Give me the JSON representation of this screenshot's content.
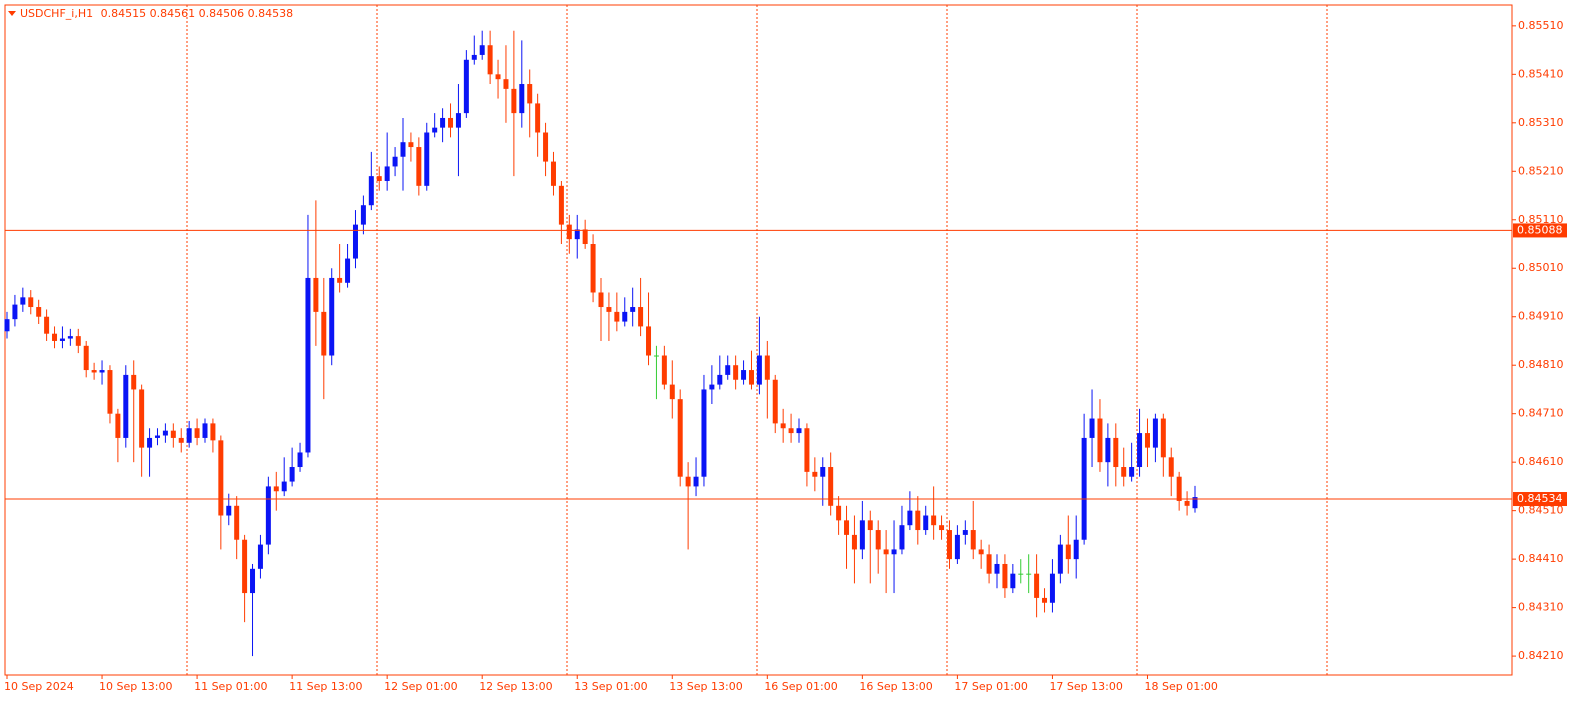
{
  "chart_data": {
    "type": "candlestick",
    "title": "USDCHF_i,H1",
    "categories": [
      "10 Sep 2024",
      null,
      null,
      null,
      null,
      null,
      null,
      null,
      null,
      null,
      null,
      null,
      "10 Sep 13:00",
      null,
      null,
      null,
      null,
      null,
      null,
      null,
      null,
      null,
      null,
      null,
      "11 Sep 01:00",
      null,
      null,
      null,
      null,
      null,
      null,
      null,
      null,
      null,
      null,
      null,
      "11 Sep 13:00",
      null,
      null,
      null,
      null,
      null,
      null,
      null,
      null,
      null,
      null,
      null,
      "12 Sep 01:00",
      null,
      null,
      null,
      null,
      null,
      null,
      null,
      null,
      null,
      null,
      null,
      "12 Sep 13:00",
      null,
      null,
      null,
      null,
      null,
      null,
      null,
      null,
      null,
      null,
      null,
      "13 Sep 01:00",
      null,
      null,
      null,
      null,
      null,
      null,
      null,
      null,
      null,
      null,
      null,
      "13 Sep 13:00",
      null,
      null,
      null,
      null,
      null,
      null,
      null,
      null,
      null,
      null,
      null,
      "16 Sep 01:00",
      null,
      null,
      null,
      null,
      null,
      null,
      null,
      null,
      null,
      null,
      null,
      "16 Sep 13:00",
      null,
      null,
      null,
      null,
      null,
      null,
      null,
      null,
      null,
      null,
      null,
      "17 Sep 01:00",
      null,
      null,
      null,
      null,
      null,
      null,
      null,
      null,
      null,
      null,
      null,
      "17 Sep 13:00",
      null,
      null,
      null,
      null,
      null,
      null,
      null,
      null,
      null,
      null,
      null,
      "18 Sep 01:00",
      null,
      null,
      null,
      null,
      null,
      null
    ],
    "ohlc": [
      [
        0.8488,
        0.8492,
        0.84865,
        0.84905
      ],
      [
        0.84905,
        0.84955,
        0.8489,
        0.84935
      ],
      [
        0.84935,
        0.8497,
        0.8492,
        0.8495
      ],
      [
        0.8495,
        0.84965,
        0.84915,
        0.8493
      ],
      [
        0.8493,
        0.84945,
        0.84895,
        0.8491
      ],
      [
        0.8491,
        0.84925,
        0.8486,
        0.84875
      ],
      [
        0.84875,
        0.8489,
        0.84845,
        0.8486
      ],
      [
        0.8486,
        0.8489,
        0.84845,
        0.84865
      ],
      [
        0.84865,
        0.84885,
        0.8485,
        0.8487
      ],
      [
        0.8487,
        0.84885,
        0.84835,
        0.8485
      ],
      [
        0.8485,
        0.8486,
        0.84785,
        0.848
      ],
      [
        0.848,
        0.84815,
        0.8478,
        0.84795
      ],
      [
        0.84795,
        0.8482,
        0.8477,
        0.848
      ],
      [
        0.848,
        0.8481,
        0.8469,
        0.8471
      ],
      [
        0.8471,
        0.8472,
        0.8461,
        0.8466
      ],
      [
        0.8466,
        0.8481,
        0.8464,
        0.8479
      ],
      [
        0.8479,
        0.8482,
        0.8461,
        0.8476
      ],
      [
        0.8476,
        0.8477,
        0.8458,
        0.8464
      ],
      [
        0.8464,
        0.8468,
        0.8458,
        0.8466
      ],
      [
        0.8466,
        0.8468,
        0.84645,
        0.84665
      ],
      [
        0.84665,
        0.8469,
        0.8465,
        0.84675
      ],
      [
        0.84675,
        0.8469,
        0.8464,
        0.8466
      ],
      [
        0.8466,
        0.8468,
        0.8463,
        0.8465
      ],
      [
        0.8465,
        0.84695,
        0.8464,
        0.8468
      ],
      [
        0.8468,
        0.847,
        0.84645,
        0.8466
      ],
      [
        0.8466,
        0.847,
        0.8465,
        0.8469
      ],
      [
        0.8469,
        0.847,
        0.8463,
        0.84655
      ],
      [
        0.84655,
        0.84665,
        0.8443,
        0.845
      ],
      [
        0.845,
        0.84545,
        0.8448,
        0.8452
      ],
      [
        0.8452,
        0.8454,
        0.8441,
        0.8445
      ],
      [
        0.8445,
        0.8446,
        0.8428,
        0.8434
      ],
      [
        0.8434,
        0.844,
        0.8421,
        0.8439
      ],
      [
        0.8439,
        0.8446,
        0.8437,
        0.8444
      ],
      [
        0.8444,
        0.8458,
        0.8442,
        0.8456
      ],
      [
        0.8456,
        0.8459,
        0.8451,
        0.8455
      ],
      [
        0.8455,
        0.8462,
        0.8454,
        0.8457
      ],
      [
        0.8457,
        0.8464,
        0.8456,
        0.846
      ],
      [
        0.846,
        0.8465,
        0.8459,
        0.8463
      ],
      [
        0.8463,
        0.8512,
        0.8462,
        0.8499
      ],
      [
        0.8499,
        0.8515,
        0.8485,
        0.8492
      ],
      [
        0.8492,
        0.8499,
        0.8474,
        0.8483
      ],
      [
        0.8483,
        0.8501,
        0.8481,
        0.8499
      ],
      [
        0.8499,
        0.8506,
        0.8496,
        0.8498
      ],
      [
        0.8498,
        0.8506,
        0.8497,
        0.8503
      ],
      [
        0.8503,
        0.8513,
        0.8501,
        0.851
      ],
      [
        0.851,
        0.8516,
        0.8508,
        0.8514
      ],
      [
        0.8514,
        0.8525,
        0.8513,
        0.852
      ],
      [
        0.852,
        0.8522,
        0.8517,
        0.8519
      ],
      [
        0.8519,
        0.8529,
        0.8517,
        0.8522
      ],
      [
        0.8522,
        0.8526,
        0.852,
        0.8524
      ],
      [
        0.8524,
        0.8532,
        0.8517,
        0.8527
      ],
      [
        0.8527,
        0.8529,
        0.8523,
        0.8526
      ],
      [
        0.8526,
        0.8528,
        0.8516,
        0.8518
      ],
      [
        0.8518,
        0.8531,
        0.8517,
        0.8529
      ],
      [
        0.8529,
        0.8533,
        0.8528,
        0.853
      ],
      [
        0.853,
        0.8534,
        0.8527,
        0.8532
      ],
      [
        0.8532,
        0.8535,
        0.8528,
        0.853
      ],
      [
        0.853,
        0.8539,
        0.852,
        0.8533
      ],
      [
        0.8533,
        0.8546,
        0.8532,
        0.8544
      ],
      [
        0.8544,
        0.8549,
        0.8543,
        0.8545
      ],
      [
        0.8545,
        0.855,
        0.8544,
        0.8547
      ],
      [
        0.8547,
        0.855,
        0.8539,
        0.8541
      ],
      [
        0.8541,
        0.8544,
        0.8536,
        0.854
      ],
      [
        0.854,
        0.8547,
        0.8531,
        0.8538
      ],
      [
        0.8538,
        0.855,
        0.852,
        0.8533
      ],
      [
        0.8533,
        0.8548,
        0.853,
        0.8539
      ],
      [
        0.8539,
        0.8542,
        0.8528,
        0.8535
      ],
      [
        0.8535,
        0.8537,
        0.8524,
        0.8529
      ],
      [
        0.8529,
        0.8531,
        0.852,
        0.8523
      ],
      [
        0.8523,
        0.8525,
        0.8516,
        0.8518
      ],
      [
        0.8518,
        0.8519,
        0.8506,
        0.851
      ],
      [
        0.851,
        0.8512,
        0.8504,
        0.8507
      ],
      [
        0.8507,
        0.8512,
        0.8503,
        0.8509
      ],
      [
        0.8509,
        0.8511,
        0.8505,
        0.8506
      ],
      [
        0.8506,
        0.8508,
        0.8494,
        0.8496
      ],
      [
        0.8496,
        0.8499,
        0.8486,
        0.8493
      ],
      [
        0.8493,
        0.8496,
        0.8486,
        0.8492
      ],
      [
        0.8492,
        0.8496,
        0.8488,
        0.849
      ],
      [
        0.849,
        0.8495,
        0.8489,
        0.8492
      ],
      [
        0.8492,
        0.8497,
        0.8489,
        0.8493
      ],
      [
        0.8493,
        0.8499,
        0.8487,
        0.8489
      ],
      [
        0.8489,
        0.8496,
        0.8481,
        0.8483
      ],
      [
        0.8483,
        0.8485,
        0.8474,
        0.8483
      ],
      [
        0.8483,
        0.8485,
        0.8476,
        0.8477
      ],
      [
        0.8477,
        0.8482,
        0.847,
        0.8474
      ],
      [
        0.8474,
        0.8476,
        0.8456,
        0.8458
      ],
      [
        0.8458,
        0.8461,
        0.8443,
        0.8456
      ],
      [
        0.8456,
        0.8462,
        0.8454,
        0.8458
      ],
      [
        0.8458,
        0.8479,
        0.8456,
        0.8476
      ],
      [
        0.8476,
        0.8481,
        0.8473,
        0.8477
      ],
      [
        0.8477,
        0.8483,
        0.8476,
        0.8479
      ],
      [
        0.8479,
        0.8483,
        0.8478,
        0.8481
      ],
      [
        0.8481,
        0.8483,
        0.8476,
        0.8478
      ],
      [
        0.8478,
        0.8482,
        0.8477,
        0.848
      ],
      [
        0.848,
        0.8484,
        0.8476,
        0.8477
      ],
      [
        0.8477,
        0.8491,
        0.8475,
        0.8483
      ],
      [
        0.8483,
        0.8486,
        0.847,
        0.8478
      ],
      [
        0.8478,
        0.8479,
        0.8467,
        0.8469
      ],
      [
        0.8469,
        0.8472,
        0.8465,
        0.8468
      ],
      [
        0.8468,
        0.8471,
        0.8465,
        0.8467
      ],
      [
        0.8467,
        0.847,
        0.8465,
        0.8468
      ],
      [
        0.8468,
        0.8469,
        0.8456,
        0.8459
      ],
      [
        0.8459,
        0.8462,
        0.8455,
        0.8458
      ],
      [
        0.8458,
        0.8462,
        0.8452,
        0.846
      ],
      [
        0.846,
        0.8463,
        0.845,
        0.8452
      ],
      [
        0.8452,
        0.8454,
        0.8446,
        0.8449
      ],
      [
        0.8449,
        0.8452,
        0.8439,
        0.8446
      ],
      [
        0.8446,
        0.845,
        0.8436,
        0.8443
      ],
      [
        0.8443,
        0.8453,
        0.8441,
        0.8449
      ],
      [
        0.8449,
        0.8451,
        0.8436,
        0.8447
      ],
      [
        0.8447,
        0.8449,
        0.8438,
        0.8443
      ],
      [
        0.8443,
        0.8447,
        0.8434,
        0.8442
      ],
      [
        0.8442,
        0.8449,
        0.8434,
        0.8443
      ],
      [
        0.8443,
        0.8452,
        0.8442,
        0.8448
      ],
      [
        0.8448,
        0.8455,
        0.8447,
        0.8451
      ],
      [
        0.8451,
        0.8454,
        0.8444,
        0.8447
      ],
      [
        0.8447,
        0.8452,
        0.8446,
        0.845
      ],
      [
        0.845,
        0.8456,
        0.8445,
        0.8448
      ],
      [
        0.8448,
        0.845,
        0.8445,
        0.8447
      ],
      [
        0.8447,
        0.8449,
        0.8439,
        0.8441
      ],
      [
        0.8441,
        0.8448,
        0.844,
        0.8446
      ],
      [
        0.8446,
        0.8449,
        0.8444,
        0.8447
      ],
      [
        0.8447,
        0.8453,
        0.8441,
        0.8443
      ],
      [
        0.8443,
        0.8445,
        0.8439,
        0.8442
      ],
      [
        0.8442,
        0.8444,
        0.8436,
        0.8438
      ],
      [
        0.8438,
        0.8442,
        0.8435,
        0.844
      ],
      [
        0.844,
        0.8442,
        0.8433,
        0.8435
      ],
      [
        0.8435,
        0.844,
        0.8434,
        0.8438
      ],
      [
        0.8438,
        0.8441,
        0.8436,
        0.8438
      ],
      [
        0.8438,
        0.8442,
        0.8434,
        0.8438
      ],
      [
        0.8438,
        0.8442,
        0.8429,
        0.8433
      ],
      [
        0.8433,
        0.8435,
        0.843,
        0.8432
      ],
      [
        0.8432,
        0.8441,
        0.843,
        0.8438
      ],
      [
        0.8438,
        0.8446,
        0.8436,
        0.8444
      ],
      [
        0.8444,
        0.845,
        0.8438,
        0.8441
      ],
      [
        0.8441,
        0.845,
        0.8437,
        0.8445
      ],
      [
        0.8445,
        0.8471,
        0.8444,
        0.8466
      ],
      [
        0.8466,
        0.8476,
        0.846,
        0.847
      ],
      [
        0.847,
        0.8474,
        0.8459,
        0.8461
      ],
      [
        0.8461,
        0.8469,
        0.8456,
        0.8466
      ],
      [
        0.8466,
        0.8469,
        0.8456,
        0.846
      ],
      [
        0.846,
        0.8464,
        0.8456,
        0.8458
      ],
      [
        0.8458,
        0.8465,
        0.8457,
        0.846
      ],
      [
        0.846,
        0.8472,
        0.8458,
        0.8467
      ],
      [
        0.8467,
        0.847,
        0.846,
        0.8464
      ],
      [
        0.8464,
        0.8471,
        0.8461,
        0.847
      ],
      [
        0.847,
        0.8471,
        0.8458,
        0.8462
      ],
      [
        0.8462,
        0.8464,
        0.8454,
        0.8458
      ],
      [
        0.8458,
        0.8459,
        0.8451,
        0.8453
      ],
      [
        0.8453,
        0.8455,
        0.845,
        0.8452
      ],
      [
        0.84515,
        0.84561,
        0.84506,
        0.84538
      ]
    ],
    "bull_color": "#0a14f5",
    "bear_color": "#ff3c00",
    "doji_color": "#33cc33",
    "price_lines": [
      0.85088,
      0.84534
    ],
    "ylim": [
      0.84171,
      0.85553
    ],
    "yticks": [
      {
        "value": 0.8551,
        "label": "0.85510"
      },
      {
        "value": 0.8541,
        "label": "0.85410"
      },
      {
        "value": 0.8531,
        "label": "0.85310"
      },
      {
        "value": 0.8521,
        "label": "0.85210"
      },
      {
        "value": 0.8511,
        "label": "0.85110"
      },
      {
        "value": 0.8501,
        "label": "0.85010"
      },
      {
        "value": 0.8491,
        "label": "0.84910"
      },
      {
        "value": 0.8481,
        "label": "0.84810"
      },
      {
        "value": 0.8471,
        "label": "0.84710"
      },
      {
        "value": 0.8461,
        "label": "0.84610"
      },
      {
        "value": 0.8451,
        "label": "0.84510"
      },
      {
        "value": 0.8441,
        "label": "0.84410"
      },
      {
        "value": 0.8431,
        "label": "0.84310"
      },
      {
        "value": 0.8421,
        "label": "0.84210"
      }
    ]
  }
}
